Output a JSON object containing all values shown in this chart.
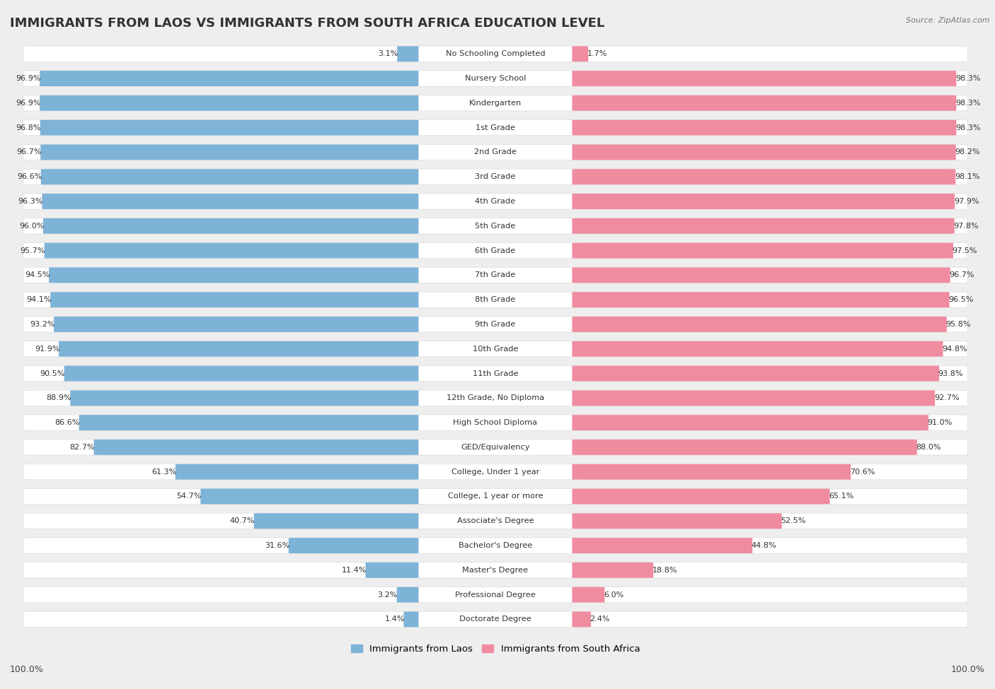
{
  "title": "IMMIGRANTS FROM LAOS VS IMMIGRANTS FROM SOUTH AFRICA EDUCATION LEVEL",
  "source": "Source: ZipAtlas.com",
  "categories": [
    "No Schooling Completed",
    "Nursery School",
    "Kindergarten",
    "1st Grade",
    "2nd Grade",
    "3rd Grade",
    "4th Grade",
    "5th Grade",
    "6th Grade",
    "7th Grade",
    "8th Grade",
    "9th Grade",
    "10th Grade",
    "11th Grade",
    "12th Grade, No Diploma",
    "High School Diploma",
    "GED/Equivalency",
    "College, Under 1 year",
    "College, 1 year or more",
    "Associate's Degree",
    "Bachelor's Degree",
    "Master's Degree",
    "Professional Degree",
    "Doctorate Degree"
  ],
  "laos_values": [
    3.1,
    96.9,
    96.9,
    96.8,
    96.7,
    96.6,
    96.3,
    96.0,
    95.7,
    94.5,
    94.1,
    93.2,
    91.9,
    90.5,
    88.9,
    86.6,
    82.7,
    61.3,
    54.7,
    40.7,
    31.6,
    11.4,
    3.2,
    1.4
  ],
  "sa_values": [
    1.7,
    98.3,
    98.3,
    98.3,
    98.2,
    98.1,
    97.9,
    97.8,
    97.5,
    96.7,
    96.5,
    95.8,
    94.8,
    93.8,
    92.7,
    91.0,
    88.0,
    70.6,
    65.1,
    52.5,
    44.8,
    18.8,
    6.0,
    2.4
  ],
  "laos_color": "#7EB3D8",
  "sa_color": "#F08CA0",
  "bg_color": "#eeeeee",
  "bar_bg_color": "#ffffff",
  "title_fontsize": 13,
  "label_fontsize": 8.2,
  "value_fontsize": 8,
  "legend_label_laos": "Immigrants from Laos",
  "legend_label_sa": "Immigrants from South Africa",
  "axis_label_left": "100.0%",
  "axis_label_right": "100.0%"
}
